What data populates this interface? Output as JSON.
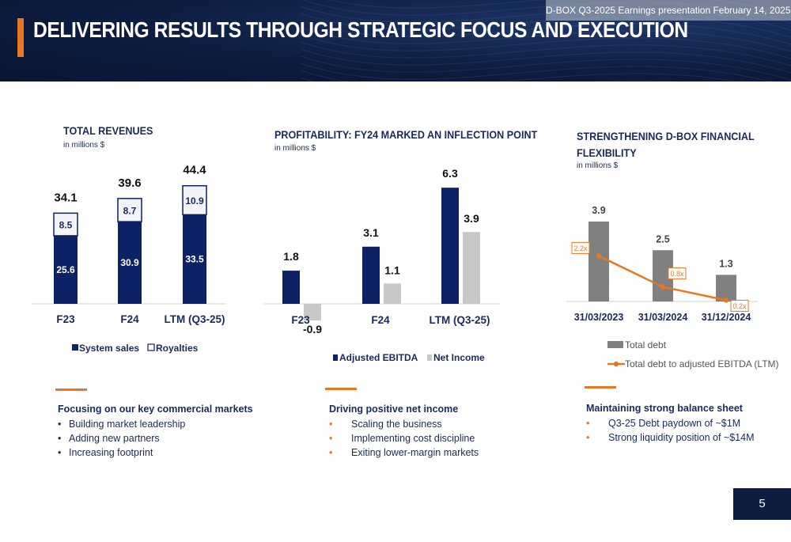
{
  "header": {
    "title": "DELIVERING RESULTS THROUGH STRATEGIC FOCUS AND EXECUTION",
    "presentation_info": "D-BOX Q3-2025 Earnings presentation  February 14, 2025"
  },
  "colors": {
    "navy": "#0d2266",
    "grey": "#808080",
    "light_grey": "#c8c8c8",
    "orange": "#e87722",
    "text": "#1a2a5a"
  },
  "chart_data": [
    {
      "type": "bar",
      "stacked": true,
      "title": "TOTAL REVENUES",
      "subtitle": "in millions $",
      "categories": [
        "F23",
        "F24",
        "LTM (Q3-25)"
      ],
      "series": [
        {
          "name": "System sales",
          "values": [
            25.6,
            30.9,
            33.5
          ]
        },
        {
          "name": "Royalties",
          "values": [
            8.5,
            8.7,
            10.9
          ]
        }
      ],
      "totals": [
        34.1,
        39.6,
        44.4
      ],
      "legend": "bottom"
    },
    {
      "type": "bar",
      "title": "PROFITABILITY: FY24 MARKED AN INFLECTION POINT",
      "subtitle": "in millions $",
      "categories": [
        "F23",
        "F24",
        "LTM (Q3-25)"
      ],
      "series": [
        {
          "name": "Adjusted EBITDA",
          "values": [
            1.8,
            3.1,
            6.3
          ]
        },
        {
          "name": "Net Income",
          "values": [
            -0.9,
            1.1,
            3.9
          ]
        }
      ],
      "legend": "bottom"
    },
    {
      "type": "bar",
      "title": "STRENGTHENING D-BOX FINANCIAL FLEXIBILITY",
      "subtitle": "in millions $",
      "categories": [
        "31/03/2023",
        "31/03/2024",
        "31/12/2024"
      ],
      "series": [
        {
          "name": "Total debt",
          "type": "bar",
          "values": [
            3.9,
            2.5,
            1.3
          ],
          "labels": [
            "3.9",
            "2.5",
            "1.3"
          ]
        },
        {
          "name": "Total debt to adjusted EBITDA (LTM)",
          "type": "line",
          "values": [
            2.2,
            0.8,
            0.2
          ],
          "labels": [
            "2.2x",
            "0.8x",
            "0.2x"
          ]
        }
      ],
      "legend": "bottom"
    }
  ],
  "sections": {
    "revenues": {
      "head": "Focusing on our key commercial markets",
      "bullets": [
        "Building market leadership",
        "Adding new partners",
        "Increasing footprint"
      ]
    },
    "profitability": {
      "head": "Driving positive net income",
      "bullets": [
        "Scaling the business",
        "Implementing cost discipline",
        "Exiting lower-margin markets"
      ]
    },
    "debt": {
      "head": "Maintaining strong balance sheet",
      "bullets": [
        "Q3-25 Debt paydown of ~$1M",
        "Strong liquidity position of  ~$14M"
      ]
    }
  },
  "page_number": "5"
}
